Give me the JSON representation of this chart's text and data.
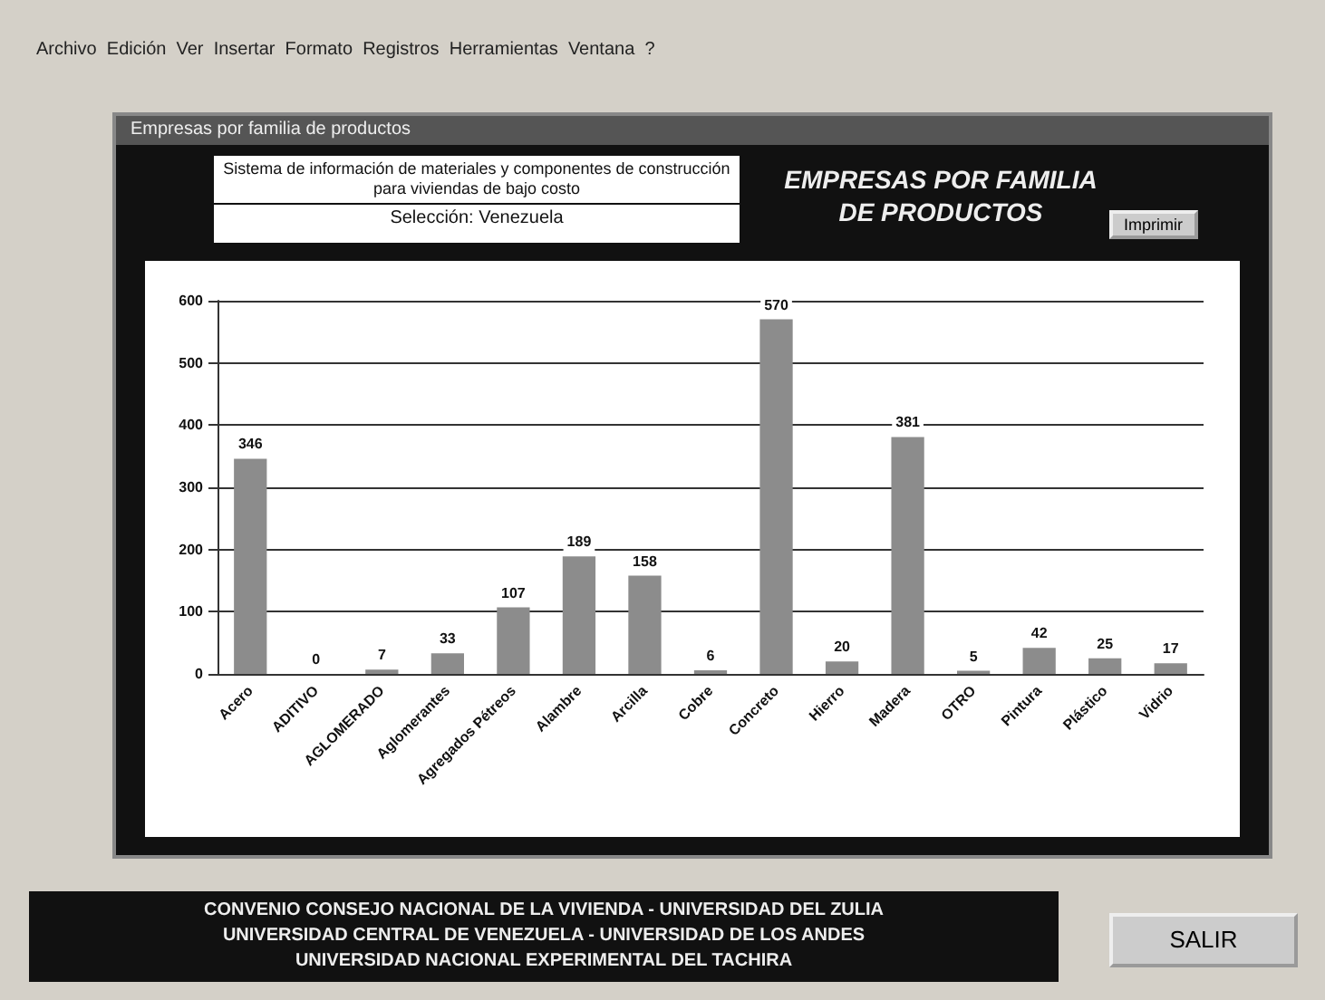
{
  "chart_data": {
    "type": "bar",
    "title": "EMPRESAS POR FAMILIA DE PRODUCTOS",
    "subtitle": "Selección: Venezuela",
    "annotations": [
      "Empresas por familia de productos",
      "Sistema de información de materiales y componentes de construcción para viviendas de bajo costo",
      "Archivo  Edición  Ver  Insertar  Formato  Registros  Herramientas  Ventana  ?",
      "CONVENIO CONSEJO NACIONAL DE LA VIVIENDA - UNIVERSIDAD DEL ZULIA\nUNIVERSIDAD CENTRAL DE VENEZUELA - UNIVERSIDAD DE LOS ANDES\nUNIVERSIDAD NACIONAL EXPERIMENTAL DEL TACHIRA",
      "Imprimir",
      "SALIR"
    ],
    "categories": [
      "Acero",
      "ADITIVO",
      "AGLOMERADO",
      "Aglomerantes",
      "Agregados Pétreos",
      "Alambre",
      "Arcilla",
      "Cobre",
      "Concreto",
      "Hierro",
      "Madera",
      "OTRO",
      "Pintura",
      "Plástico",
      "Vidrio"
    ],
    "values": [
      346,
      0,
      7,
      33,
      107,
      189,
      158,
      6,
      570,
      20,
      381,
      5,
      42,
      25,
      17
    ],
    "color": "#8c8c8c",
    "ylim": [
      0,
      600
    ],
    "yticks": [
      0,
      100,
      200,
      300,
      400,
      500,
      600
    ],
    "grid": "y",
    "data_labels": true
  }
}
